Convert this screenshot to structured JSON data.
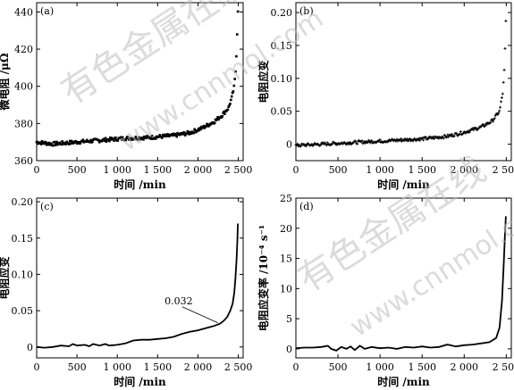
{
  "watermark": {
    "line1": "有色金属在线",
    "line2": "www.cnnmol.com"
  },
  "chart_data": [
    {
      "panel": "(a)",
      "type": "scatter",
      "xlabel": "时间 /min",
      "ylabel": "微电阻 /μΩ",
      "xlim": [
        0,
        2560
      ],
      "ylim": [
        360,
        445
      ],
      "xticks": [
        0,
        500,
        1000,
        1500,
        2000,
        2500
      ],
      "yticks": [
        360,
        380,
        400,
        420,
        440
      ],
      "xtick_labels": [
        "0",
        "500",
        "1 000",
        "1 500",
        "2 000",
        "2 500"
      ],
      "ytick_labels": [
        "360",
        "380",
        "400",
        "420",
        "440"
      ],
      "marker": "dot",
      "curve": [
        [
          0,
          370
        ],
        [
          200,
          369
        ],
        [
          500,
          370
        ],
        [
          800,
          371
        ],
        [
          1100,
          372
        ],
        [
          1400,
          372.5
        ],
        [
          1700,
          373.5
        ],
        [
          1900,
          375
        ],
        [
          2050,
          377.5
        ],
        [
          2200,
          381
        ],
        [
          2300,
          384.5
        ],
        [
          2380,
          388.5
        ],
        [
          2420,
          394
        ],
        [
          2450,
          400
        ],
        [
          2470,
          410
        ],
        [
          2485,
          428
        ],
        [
          2495,
          441
        ]
      ]
    },
    {
      "panel": "(b)",
      "type": "scatter",
      "xlabel": "时间 /min",
      "ylabel": "电阻应变",
      "xlim": [
        0,
        2560
      ],
      "ylim": [
        -0.025,
        0.215
      ],
      "xticks": [
        0,
        500,
        1000,
        1500,
        2000,
        2500
      ],
      "yticks": [
        0,
        0.05,
        0.1,
        0.15,
        0.2
      ],
      "xtick_labels": [
        "0",
        "500",
        "1 000",
        "1 500",
        "2 000",
        "2 500"
      ],
      "ytick_labels": [
        "0",
        "0.05",
        "0.10",
        "0.15",
        "0.20"
      ],
      "marker": "cross",
      "curve": [
        [
          0,
          -0.002
        ],
        [
          300,
          0.0
        ],
        [
          600,
          0.002
        ],
        [
          900,
          0.004
        ],
        [
          1200,
          0.006
        ],
        [
          1500,
          0.008
        ],
        [
          1800,
          0.012
        ],
        [
          2000,
          0.018
        ],
        [
          2200,
          0.026
        ],
        [
          2330,
          0.035
        ],
        [
          2420,
          0.05
        ],
        [
          2460,
          0.08
        ],
        [
          2480,
          0.12
        ],
        [
          2495,
          0.186
        ]
      ]
    },
    {
      "panel": "(c)",
      "type": "line",
      "xlabel": "时间 /min",
      "ylabel": "电阻应变",
      "xlim": [
        0,
        2560
      ],
      "ylim": [
        -0.015,
        0.205
      ],
      "xticks": [
        0,
        500,
        1000,
        1500,
        2000,
        2500
      ],
      "yticks": [
        0,
        0.05,
        0.1,
        0.15,
        0.2
      ],
      "xtick_labels": [
        "0",
        "500",
        "1 000",
        "1 500",
        "2 000",
        "2 500"
      ],
      "ytick_labels": [
        "0",
        "0.05",
        "0.10",
        "0.15",
        "0.20"
      ],
      "annotation": {
        "text": "0.032",
        "x": 2270,
        "y": 0.032
      },
      "points": [
        [
          0,
          0
        ],
        [
          100,
          -0.001
        ],
        [
          200,
          0.0
        ],
        [
          300,
          0.002
        ],
        [
          400,
          0.001
        ],
        [
          450,
          0.004
        ],
        [
          500,
          0.002
        ],
        [
          600,
          0.003
        ],
        [
          650,
          0.001
        ],
        [
          700,
          0.004
        ],
        [
          780,
          0.002
        ],
        [
          850,
          0.004
        ],
        [
          900,
          0.002
        ],
        [
          1000,
          0.003
        ],
        [
          1100,
          0.005
        ],
        [
          1200,
          0.009
        ],
        [
          1300,
          0.01
        ],
        [
          1400,
          0.01
        ],
        [
          1500,
          0.011
        ],
        [
          1600,
          0.012
        ],
        [
          1700,
          0.014
        ],
        [
          1800,
          0.018
        ],
        [
          1900,
          0.021
        ],
        [
          2000,
          0.023
        ],
        [
          2100,
          0.026
        ],
        [
          2200,
          0.029
        ],
        [
          2270,
          0.032
        ],
        [
          2320,
          0.036
        ],
        [
          2360,
          0.041
        ],
        [
          2400,
          0.05
        ],
        [
          2430,
          0.06
        ],
        [
          2450,
          0.075
        ],
        [
          2465,
          0.095
        ],
        [
          2478,
          0.12
        ],
        [
          2488,
          0.145
        ],
        [
          2495,
          0.17
        ]
      ]
    },
    {
      "panel": "(d)",
      "type": "line",
      "xlabel": "时间 /min",
      "ylabel": "电阻应变率 /10⁻⁴ s⁻¹",
      "xlim": [
        0,
        2560
      ],
      "ylim": [
        -1.5,
        25
      ],
      "xticks": [
        0,
        500,
        1000,
        1500,
        2000,
        2500
      ],
      "yticks": [
        0,
        5,
        10,
        15,
        20,
        25
      ],
      "xtick_labels": [
        "0",
        "500",
        "1 000",
        "1 500",
        "2 000",
        "2 500"
      ],
      "ytick_labels": [
        "0",
        "5",
        "10",
        "15",
        "20",
        "25"
      ],
      "points": [
        [
          0,
          0.1
        ],
        [
          100,
          0.2
        ],
        [
          200,
          0.2
        ],
        [
          300,
          0.3
        ],
        [
          380,
          0.5
        ],
        [
          420,
          0.0
        ],
        [
          480,
          -0.3
        ],
        [
          540,
          0.3
        ],
        [
          600,
          0.0
        ],
        [
          650,
          0.4
        ],
        [
          700,
          -0.2
        ],
        [
          760,
          0.5
        ],
        [
          820,
          0.0
        ],
        [
          900,
          0.3
        ],
        [
          1000,
          0.1
        ],
        [
          1100,
          0.2
        ],
        [
          1200,
          0.0
        ],
        [
          1300,
          0.3
        ],
        [
          1400,
          0.2
        ],
        [
          1500,
          0.4
        ],
        [
          1600,
          0.2
        ],
        [
          1700,
          0.3
        ],
        [
          1800,
          0.7
        ],
        [
          1900,
          0.4
        ],
        [
          2000,
          0.6
        ],
        [
          2100,
          0.7
        ],
        [
          2200,
          0.9
        ],
        [
          2300,
          1.1
        ],
        [
          2380,
          1.8
        ],
        [
          2420,
          3.5
        ],
        [
          2450,
          8
        ],
        [
          2470,
          14
        ],
        [
          2485,
          19
        ],
        [
          2495,
          22
        ]
      ]
    }
  ]
}
